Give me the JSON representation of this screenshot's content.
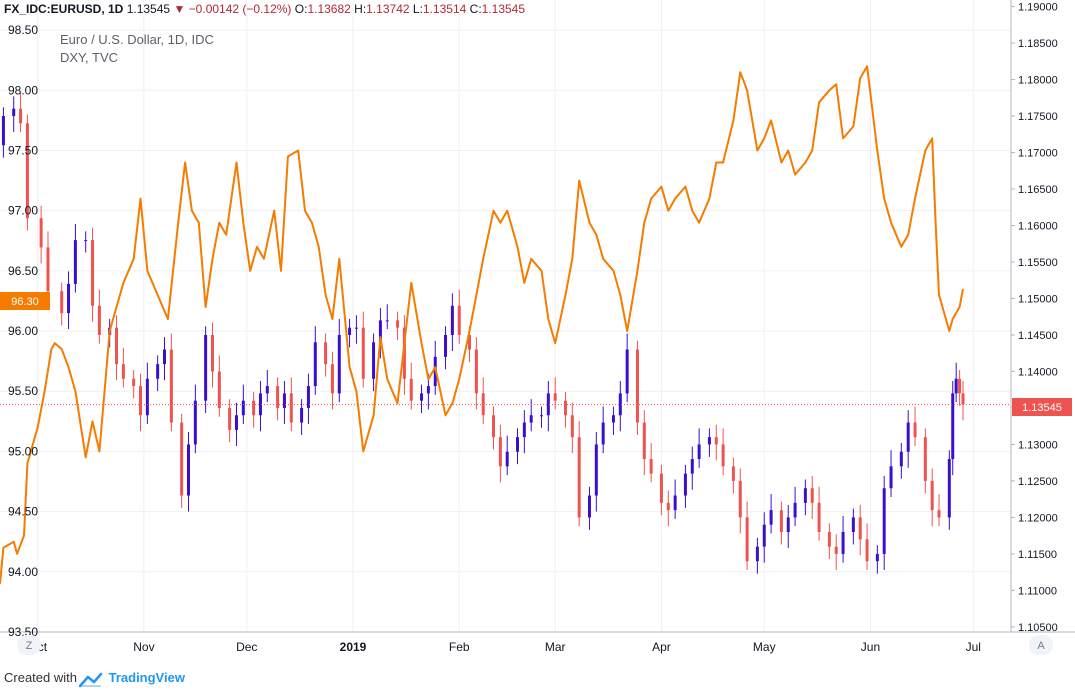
{
  "header": {
    "symbol": "FX_IDC:EURUSD, 1D",
    "last": "1.13545",
    "change_arrow": "▼",
    "change": "−0.00142 (−0.12%)",
    "o_label": "O:",
    "o": "1.13682",
    "h_label": "H:",
    "h": "1.13742",
    "l_label": "L:",
    "l": "1.13514",
    "c_label": "C:",
    "c": "1.13545"
  },
  "legend": {
    "main_series": "Euro / U.S. Dollar, 1D, IDC",
    "compare_series": "DXY, TVC"
  },
  "footer": {
    "created_with": "Created with",
    "brand": "TradingView",
    "brand_icon": "tradingview-logo-icon"
  },
  "buttons": {
    "left": "Z",
    "right": "A"
  },
  "colors": {
    "up": "#3a0fd0",
    "down": "#ef5350",
    "compare_line": "#f57c00",
    "last_price": "#ef5350",
    "compare_label": "#f57c00"
  },
  "chart_data": {
    "type": "line",
    "title": "Euro / U.S. Dollar, 1D, IDC",
    "time_axis": {
      "range": [
        "2018-09-20",
        "2019-07-12"
      ],
      "ticks": [
        {
          "label": "Oct",
          "date": "2018-10-01"
        },
        {
          "label": "Nov",
          "date": "2018-11-01"
        },
        {
          "label": "Dec",
          "date": "2018-12-01"
        },
        {
          "label": "2019",
          "date": "2019-01-01"
        },
        {
          "label": "Feb",
          "date": "2019-02-01"
        },
        {
          "label": "Mar",
          "date": "2019-03-01"
        },
        {
          "label": "Apr",
          "date": "2019-04-01"
        },
        {
          "label": "May",
          "date": "2019-05-01"
        },
        {
          "label": "Jun",
          "date": "2019-06-01"
        },
        {
          "label": "Jul",
          "date": "2019-07-01"
        }
      ]
    },
    "left_axis": {
      "series": "DXY, TVC",
      "range": [
        93.5,
        98.75
      ],
      "ticks": [
        "93.50",
        "94.00",
        "94.50",
        "95.00",
        "95.50",
        "96.00",
        "96.50",
        "97.00",
        "97.50",
        "98.00",
        "98.50"
      ],
      "current_value": "96.30"
    },
    "right_axis": {
      "series": "FX_IDC:EURUSD",
      "range": [
        1.1043,
        1.1909
      ],
      "ticks": [
        "1.10500",
        "1.11000",
        "1.11500",
        "1.12000",
        "1.12500",
        "1.13000",
        "1.13500",
        "1.14000",
        "1.14500",
        "1.15000",
        "1.15500",
        "1.16000",
        "1.16500",
        "1.17000",
        "1.17500",
        "1.18000",
        "1.18500",
        "1.19000"
      ],
      "current_value": "1.13545"
    },
    "grid": true,
    "series": [
      {
        "name": "Euro / U.S. Dollar, 1D, IDC",
        "type": "candlestick",
        "close_points": [
          [
            "2018-09-21",
            1.175
          ],
          [
            "2018-09-24",
            1.176
          ],
          [
            "2018-09-26",
            1.174
          ],
          [
            "2018-09-28",
            1.161
          ],
          [
            "2018-10-02",
            1.157
          ],
          [
            "2018-10-04",
            1.151
          ],
          [
            "2018-10-08",
            1.148
          ],
          [
            "2018-10-10",
            1.152
          ],
          [
            "2018-10-12",
            1.158
          ],
          [
            "2018-10-15",
            1.158
          ],
          [
            "2018-10-17",
            1.149
          ],
          [
            "2018-10-19",
            1.145
          ],
          [
            "2018-10-22",
            1.146
          ],
          [
            "2018-10-24",
            1.141
          ],
          [
            "2018-10-26",
            1.139
          ],
          [
            "2018-10-29",
            1.138
          ],
          [
            "2018-10-31",
            1.134
          ],
          [
            "2018-11-02",
            1.139
          ],
          [
            "2018-11-05",
            1.141
          ],
          [
            "2018-11-07",
            1.143
          ],
          [
            "2018-11-09",
            1.133
          ],
          [
            "2018-11-12",
            1.123
          ],
          [
            "2018-11-14",
            1.13
          ],
          [
            "2018-11-16",
            1.136
          ],
          [
            "2018-11-19",
            1.145
          ],
          [
            "2018-11-21",
            1.14
          ],
          [
            "2018-11-23",
            1.135
          ],
          [
            "2018-11-26",
            1.132
          ],
          [
            "2018-11-28",
            1.134
          ],
          [
            "2018-11-30",
            1.136
          ],
          [
            "2018-12-03",
            1.134
          ],
          [
            "2018-12-05",
            1.137
          ],
          [
            "2018-12-07",
            1.138
          ],
          [
            "2018-12-10",
            1.135
          ],
          [
            "2018-12-12",
            1.137
          ],
          [
            "2018-12-14",
            1.133
          ],
          [
            "2018-12-17",
            1.135
          ],
          [
            "2018-12-19",
            1.138
          ],
          [
            "2018-12-21",
            1.144
          ],
          [
            "2018-12-24",
            1.141
          ],
          [
            "2018-12-26",
            1.137
          ],
          [
            "2018-12-28",
            1.145
          ],
          [
            "2018-12-31",
            1.146
          ],
          [
            "2019-01-02",
            1.146
          ],
          [
            "2019-01-04",
            1.139
          ],
          [
            "2019-01-07",
            1.144
          ],
          [
            "2019-01-09",
            1.147
          ],
          [
            "2019-01-11",
            1.147
          ],
          [
            "2019-01-14",
            1.146
          ],
          [
            "2019-01-16",
            1.139
          ],
          [
            "2019-01-18",
            1.136
          ],
          [
            "2019-01-21",
            1.137
          ],
          [
            "2019-01-23",
            1.138
          ],
          [
            "2019-01-25",
            1.142
          ],
          [
            "2019-01-28",
            1.145
          ],
          [
            "2019-01-30",
            1.149
          ],
          [
            "2019-02-01",
            1.145
          ],
          [
            "2019-02-04",
            1.143
          ],
          [
            "2019-02-06",
            1.137
          ],
          [
            "2019-02-08",
            1.134
          ],
          [
            "2019-02-11",
            1.131
          ],
          [
            "2019-02-13",
            1.127
          ],
          [
            "2019-02-15",
            1.129
          ],
          [
            "2019-02-18",
            1.131
          ],
          [
            "2019-02-20",
            1.133
          ],
          [
            "2019-02-22",
            1.134
          ],
          [
            "2019-02-25",
            1.134
          ],
          [
            "2019-02-27",
            1.137
          ],
          [
            "2019-03-01",
            1.136
          ],
          [
            "2019-03-04",
            1.134
          ],
          [
            "2019-03-06",
            1.131
          ],
          [
            "2019-03-08",
            1.12
          ],
          [
            "2019-03-11",
            1.123
          ],
          [
            "2019-03-13",
            1.13
          ],
          [
            "2019-03-15",
            1.133
          ],
          [
            "2019-03-18",
            1.134
          ],
          [
            "2019-03-20",
            1.137
          ],
          [
            "2019-03-22",
            1.143
          ],
          [
            "2019-03-25",
            1.133
          ],
          [
            "2019-03-27",
            1.128
          ],
          [
            "2019-03-29",
            1.126
          ],
          [
            "2019-04-01",
            1.122
          ],
          [
            "2019-04-03",
            1.121
          ],
          [
            "2019-04-05",
            1.123
          ],
          [
            "2019-04-08",
            1.126
          ],
          [
            "2019-04-10",
            1.128
          ],
          [
            "2019-04-12",
            1.13
          ],
          [
            "2019-04-15",
            1.131
          ],
          [
            "2019-04-17",
            1.13
          ],
          [
            "2019-04-19",
            1.127
          ],
          [
            "2019-04-22",
            1.125
          ],
          [
            "2019-04-24",
            1.12
          ],
          [
            "2019-04-26",
            1.114
          ],
          [
            "2019-04-29",
            1.116
          ],
          [
            "2019-05-01",
            1.119
          ],
          [
            "2019-05-03",
            1.121
          ],
          [
            "2019-05-06",
            1.118
          ],
          [
            "2019-05-08",
            1.12
          ],
          [
            "2019-05-10",
            1.122
          ],
          [
            "2019-05-13",
            1.124
          ],
          [
            "2019-05-15",
            1.122
          ],
          [
            "2019-05-17",
            1.118
          ],
          [
            "2019-05-20",
            1.116
          ],
          [
            "2019-05-22",
            1.115
          ],
          [
            "2019-05-24",
            1.118
          ],
          [
            "2019-05-27",
            1.12
          ],
          [
            "2019-05-29",
            1.117
          ],
          [
            "2019-05-31",
            1.114
          ],
          [
            "2019-06-03",
            1.115
          ],
          [
            "2019-06-05",
            1.124
          ],
          [
            "2019-06-07",
            1.127
          ],
          [
            "2019-06-10",
            1.129
          ],
          [
            "2019-06-12",
            1.133
          ],
          [
            "2019-06-14",
            1.131
          ],
          [
            "2019-06-17",
            1.125
          ],
          [
            "2019-06-19",
            1.121
          ],
          [
            "2019-06-21",
            1.12
          ],
          [
            "2019-06-24",
            1.128
          ],
          [
            "2019-06-25",
            1.137
          ],
          [
            "2019-06-26",
            1.139
          ],
          [
            "2019-06-27",
            1.137
          ],
          [
            "2019-06-28",
            1.1355
          ]
        ]
      },
      {
        "name": "DXY, TVC",
        "type": "line",
        "points": [
          [
            "2018-09-20",
            93.9
          ],
          [
            "2018-09-21",
            94.2
          ],
          [
            "2018-09-24",
            94.25
          ],
          [
            "2018-09-25",
            94.15
          ],
          [
            "2018-09-27",
            94.3
          ],
          [
            "2018-09-28",
            94.9
          ],
          [
            "2018-10-01",
            95.2
          ],
          [
            "2018-10-03",
            95.5
          ],
          [
            "2018-10-05",
            95.85
          ],
          [
            "2018-10-06",
            95.9
          ],
          [
            "2018-10-08",
            95.85
          ],
          [
            "2018-10-10",
            95.7
          ],
          [
            "2018-10-12",
            95.5
          ],
          [
            "2018-10-15",
            94.95
          ],
          [
            "2018-10-17",
            95.25
          ],
          [
            "2018-10-19",
            95.0
          ],
          [
            "2018-10-22",
            96.0
          ],
          [
            "2018-10-24",
            96.2
          ],
          [
            "2018-10-26",
            96.4
          ],
          [
            "2018-10-29",
            96.6
          ],
          [
            "2018-10-31",
            97.1
          ],
          [
            "2018-11-02",
            96.5
          ],
          [
            "2018-11-05",
            96.3
          ],
          [
            "2018-11-08",
            96.1
          ],
          [
            "2018-11-11",
            96.9
          ],
          [
            "2018-11-13",
            97.4
          ],
          [
            "2018-11-15",
            97.0
          ],
          [
            "2018-11-17",
            96.9
          ],
          [
            "2018-11-19",
            96.2
          ],
          [
            "2018-11-21",
            96.6
          ],
          [
            "2018-11-23",
            96.9
          ],
          [
            "2018-11-25",
            96.8
          ],
          [
            "2018-11-28",
            97.4
          ],
          [
            "2018-11-30",
            96.9
          ],
          [
            "2018-12-02",
            96.5
          ],
          [
            "2018-12-04",
            96.7
          ],
          [
            "2018-12-06",
            96.6
          ],
          [
            "2018-12-09",
            97.0
          ],
          [
            "2018-12-11",
            96.5
          ],
          [
            "2018-12-13",
            97.45
          ],
          [
            "2018-12-16",
            97.5
          ],
          [
            "2018-12-18",
            97.0
          ],
          [
            "2018-12-20",
            96.9
          ],
          [
            "2018-12-22",
            96.7
          ],
          [
            "2018-12-24",
            96.3
          ],
          [
            "2018-12-26",
            96.1
          ],
          [
            "2018-12-28",
            96.6
          ],
          [
            "2018-12-31",
            95.7
          ],
          [
            "2019-01-02",
            95.5
          ],
          [
            "2019-01-04",
            95.0
          ],
          [
            "2019-01-07",
            95.3
          ],
          [
            "2019-01-09",
            95.95
          ],
          [
            "2019-01-11",
            95.6
          ],
          [
            "2019-01-14",
            95.4
          ],
          [
            "2019-01-16",
            95.9
          ],
          [
            "2019-01-18",
            96.4
          ],
          [
            "2019-01-21",
            95.9
          ],
          [
            "2019-01-23",
            95.6
          ],
          [
            "2019-01-25",
            95.7
          ],
          [
            "2019-01-28",
            95.3
          ],
          [
            "2019-01-30",
            95.4
          ],
          [
            "2019-02-01",
            95.6
          ],
          [
            "2019-02-04",
            96.0
          ],
          [
            "2019-02-06",
            96.3
          ],
          [
            "2019-02-08",
            96.6
          ],
          [
            "2019-02-11",
            97.0
          ],
          [
            "2019-02-13",
            96.9
          ],
          [
            "2019-02-15",
            97.0
          ],
          [
            "2019-02-18",
            96.7
          ],
          [
            "2019-02-20",
            96.4
          ],
          [
            "2019-02-22",
            96.6
          ],
          [
            "2019-02-25",
            96.5
          ],
          [
            "2019-02-27",
            96.1
          ],
          [
            "2019-03-01",
            95.9
          ],
          [
            "2019-03-04",
            96.3
          ],
          [
            "2019-03-06",
            96.6
          ],
          [
            "2019-03-08",
            97.25
          ],
          [
            "2019-03-11",
            96.9
          ],
          [
            "2019-03-13",
            96.8
          ],
          [
            "2019-03-15",
            96.6
          ],
          [
            "2019-03-18",
            96.5
          ],
          [
            "2019-03-20",
            96.3
          ],
          [
            "2019-03-22",
            96.0
          ],
          [
            "2019-03-25",
            96.5
          ],
          [
            "2019-03-27",
            96.9
          ],
          [
            "2019-03-29",
            97.1
          ],
          [
            "2019-04-01",
            97.2
          ],
          [
            "2019-04-03",
            97.0
          ],
          [
            "2019-04-05",
            97.1
          ],
          [
            "2019-04-08",
            97.2
          ],
          [
            "2019-04-10",
            97.0
          ],
          [
            "2019-04-12",
            96.9
          ],
          [
            "2019-04-15",
            97.1
          ],
          [
            "2019-04-17",
            97.4
          ],
          [
            "2019-04-19",
            97.4
          ],
          [
            "2019-04-22",
            97.75
          ],
          [
            "2019-04-24",
            98.15
          ],
          [
            "2019-04-26",
            98.0
          ],
          [
            "2019-04-29",
            97.5
          ],
          [
            "2019-05-01",
            97.6
          ],
          [
            "2019-05-03",
            97.75
          ],
          [
            "2019-05-06",
            97.4
          ],
          [
            "2019-05-08",
            97.5
          ],
          [
            "2019-05-10",
            97.3
          ],
          [
            "2019-05-13",
            97.4
          ],
          [
            "2019-05-15",
            97.5
          ],
          [
            "2019-05-17",
            97.9
          ],
          [
            "2019-05-20",
            98.0
          ],
          [
            "2019-05-22",
            98.05
          ],
          [
            "2019-05-24",
            97.6
          ],
          [
            "2019-05-27",
            97.7
          ],
          [
            "2019-05-29",
            98.1
          ],
          [
            "2019-05-31",
            98.2
          ],
          [
            "2019-06-03",
            97.5
          ],
          [
            "2019-06-05",
            97.1
          ],
          [
            "2019-06-07",
            96.9
          ],
          [
            "2019-06-10",
            96.7
          ],
          [
            "2019-06-12",
            96.8
          ],
          [
            "2019-06-14",
            97.1
          ],
          [
            "2019-06-17",
            97.5
          ],
          [
            "2019-06-19",
            97.6
          ],
          [
            "2019-06-20",
            96.9
          ],
          [
            "2019-06-21",
            96.3
          ],
          [
            "2019-06-24",
            96.0
          ],
          [
            "2019-06-25",
            96.1
          ],
          [
            "2019-06-27",
            96.2
          ],
          [
            "2019-06-28",
            96.35
          ]
        ]
      }
    ]
  }
}
